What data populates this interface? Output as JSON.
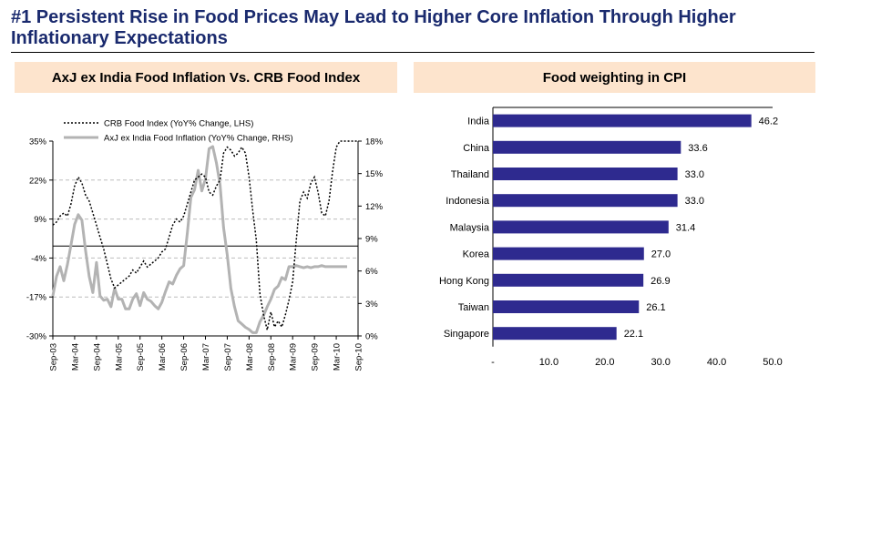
{
  "page": {
    "title": "#1 Persistent Rise in Food Prices May Lead to Higher Core Inflation Through Higher Inflationary Expectations"
  },
  "colors": {
    "title": "#1a2a6e",
    "header_bg": "#fde4cd",
    "bar_fill": "#2e2a8f",
    "crb_line": "#000000",
    "axj_line": "#b3b3b3",
    "grid": "#bdbdbd"
  },
  "chart_data": [
    {
      "type": "line",
      "title": "AxJ ex India Food Inflation Vs. CRB Food Index",
      "x_ticks": [
        "Sep-03",
        "Mar-04",
        "Sep-04",
        "Mar-05",
        "Sep-05",
        "Mar-06",
        "Sep-06",
        "Mar-07",
        "Sep-07",
        "Mar-08",
        "Sep-08",
        "Mar-09",
        "Sep-09",
        "Mar-10",
        "Sep-10"
      ],
      "ylim_left": [
        -30,
        35
      ],
      "yticks_left": [
        "35%",
        "22%",
        "9%",
        "-4%",
        "-17%",
        "-30%"
      ],
      "ylim_right": [
        0,
        18
      ],
      "yticks_right": [
        "18%",
        "15%",
        "12%",
        "9%",
        "6%",
        "3%",
        "0%"
      ],
      "grid": "horizontal dashed",
      "series": [
        {
          "name": "CRB Food Index (YoY% Change, LHS)",
          "axis": "left",
          "style": "dotted-black",
          "x": [
            0,
            1,
            2,
            3,
            4,
            5,
            6,
            7,
            8,
            9,
            10,
            11,
            12,
            13,
            14,
            15,
            16,
            17,
            18,
            19,
            20,
            21,
            22,
            23,
            24,
            25,
            26,
            27,
            28,
            29,
            30,
            31,
            32,
            33,
            34,
            35,
            36,
            37,
            38,
            39,
            40,
            41,
            42,
            43,
            44,
            45,
            46,
            47,
            48,
            49,
            50,
            51,
            52,
            53,
            54,
            55,
            56,
            57,
            58,
            59,
            60,
            61,
            62,
            63,
            64,
            65,
            66,
            67,
            68,
            69,
            70,
            71,
            72,
            73,
            74,
            75,
            76,
            77,
            78,
            79,
            80,
            81,
            82,
            83,
            84
          ],
          "values": [
            7,
            8,
            10,
            11,
            10,
            14,
            20,
            23,
            21,
            17,
            15,
            11,
            7,
            3,
            -1,
            -6,
            -11,
            -14,
            -13,
            -12,
            -11,
            -10,
            -8,
            -9,
            -7,
            -5,
            -7,
            -6,
            -5,
            -4,
            -2,
            -1,
            3,
            7,
            9,
            8,
            10,
            14,
            18,
            22,
            23,
            24,
            23,
            18,
            17,
            20,
            22,
            31,
            33,
            32,
            30,
            31,
            33,
            31,
            23,
            12,
            2,
            -16,
            -23,
            -28,
            -22,
            -27,
            -25,
            -27,
            -23,
            -18,
            -12,
            2,
            15,
            18,
            16,
            21,
            23,
            18,
            11,
            10,
            15,
            25,
            33,
            35,
            35,
            35,
            35,
            35,
            35
          ]
        },
        {
          "name": "AxJ ex India Food Inflation (YoY% Change, RHS)",
          "axis": "right",
          "style": "solid-gray",
          "x": [
            0,
            1,
            2,
            3,
            4,
            5,
            6,
            7,
            8,
            9,
            10,
            11,
            12,
            13,
            14,
            15,
            16,
            17,
            18,
            19,
            20,
            21,
            22,
            23,
            24,
            25,
            26,
            27,
            28,
            29,
            30,
            31,
            32,
            33,
            34,
            35,
            36,
            37,
            38,
            39,
            40,
            41,
            42,
            43,
            44,
            45,
            46,
            47,
            48,
            49,
            50,
            51,
            52,
            53,
            54,
            55,
            56,
            57,
            58,
            59,
            60,
            61,
            62,
            63,
            64,
            65,
            66,
            67,
            68,
            69,
            70,
            71,
            72,
            73,
            74,
            75,
            76,
            77,
            78,
            79,
            80,
            81
          ],
          "values": [
            3.7,
            5.5,
            6.4,
            5.1,
            6.6,
            8.4,
            10.3,
            11.2,
            10.7,
            7.9,
            5.5,
            4.0,
            6.8,
            3.7,
            3.3,
            3.4,
            2.7,
            4.4,
            3.4,
            3.4,
            2.5,
            2.5,
            3.4,
            3.9,
            2.8,
            4.0,
            3.4,
            3.2,
            2.8,
            2.5,
            3.1,
            4.1,
            5.0,
            4.8,
            5.6,
            6.2,
            6.5,
            9.5,
            12.8,
            13.5,
            15.3,
            13.4,
            14.5,
            17.3,
            17.5,
            16.0,
            14.0,
            10.0,
            7.5,
            4.4,
            2.7,
            1.4,
            1.1,
            0.8,
            0.6,
            0.3,
            0.3,
            1.3,
            1.9,
            2.7,
            3.4,
            4.3,
            4.6,
            5.4,
            5.2,
            6.4,
            6.4,
            6.5,
            6.4,
            6.3,
            6.4,
            6.3,
            6.4,
            6.4,
            6.5,
            6.4,
            6.4,
            6.4,
            6.4,
            6.4,
            6.4,
            6.4
          ]
        }
      ]
    },
    {
      "type": "bar",
      "orientation": "horizontal",
      "title": "Food weighting in CPI",
      "categories": [
        "India",
        "China",
        "Thailand",
        "Indonesia",
        "Malaysia",
        "Korea",
        "Hong Kong",
        "Taiwan",
        "Singapore"
      ],
      "values": [
        46.2,
        33.6,
        33.0,
        33.0,
        31.4,
        27.0,
        26.9,
        26.1,
        22.1
      ],
      "value_labels": [
        "46.2",
        "33.6",
        "33.0",
        "33.0",
        "31.4",
        "27.0",
        "26.9",
        "26.1",
        "22.1"
      ],
      "x_ticks": [
        "-",
        "10.0",
        "20.0",
        "30.0",
        "40.0",
        "50.0"
      ],
      "xlim": [
        0,
        50
      ]
    }
  ]
}
